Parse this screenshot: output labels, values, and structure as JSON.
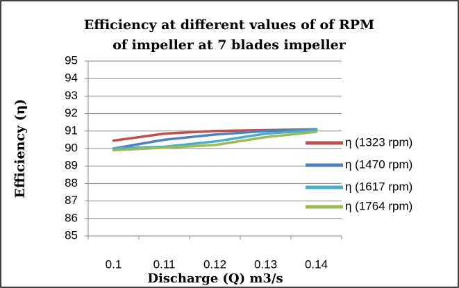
{
  "chart_data": {
    "type": "line",
    "title": [
      "Efficiency at different values of of RPM",
      "of impeller at 7 blades impeller"
    ],
    "xlabel": "Discharge (Q) m3/s",
    "ylabel": "Efficiency (η)",
    "categories": [
      "0.1",
      "0.11",
      "0.12",
      "0.13",
      "0.14"
    ],
    "ylim": [
      85,
      95
    ],
    "yticks": [
      85,
      86,
      87,
      88,
      89,
      90,
      91,
      92,
      93,
      94,
      95
    ],
    "grid": true,
    "legend": "right",
    "series": [
      {
        "name": "η (1323 rpm)",
        "color": "#c0504d",
        "values": [
          90.45,
          90.85,
          91.0,
          91.05,
          91.1
        ]
      },
      {
        "name": "η (1470 rpm)",
        "color": "#4f81bd",
        "values": [
          90.0,
          90.5,
          90.8,
          91.0,
          91.1
        ]
      },
      {
        "name": "η (1617 rpm)",
        "color": "#4bacc6",
        "values": [
          90.0,
          90.1,
          90.4,
          90.85,
          91.05
        ]
      },
      {
        "name": "η (1764 rpm)",
        "color": "#9bbb59",
        "values": [
          89.9,
          90.05,
          90.2,
          90.65,
          90.95
        ]
      }
    ]
  }
}
